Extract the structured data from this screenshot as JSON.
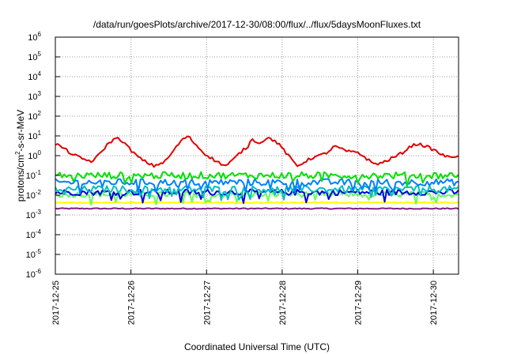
{
  "chart_data": {
    "type": "line",
    "title": "/data/run/goesPlots/archive/2017-12-30/08:00/flux/../flux/5daysMoonFluxes.txt",
    "xlabel": "Coordinated Universal Time (UTC)",
    "ylabel": "protons/cm²-s-sr-MeV",
    "ylabel_parts": [
      "protons/cm",
      "2",
      "-s-sr-MeV"
    ],
    "y_scale": "log",
    "ylim_exp": [
      -6,
      6
    ],
    "y_tick_exponents": [
      "-6",
      "-5",
      "-4",
      "-3",
      "-2",
      "-1",
      "0",
      "1",
      "2",
      "3",
      "4",
      "5",
      "6"
    ],
    "x_start": "2017-12-25",
    "x_end": "2017-12-30 08:00",
    "x_ticks": [
      "2017-12-25",
      "2017-12-26",
      "2017-12-27",
      "2017-12-28",
      "2017-12-29",
      "2017-12-30"
    ],
    "grid": true,
    "series": [
      {
        "color": "#e00000",
        "approx": "oscillates ~0.3–10, peaks near Dec 25.8, 26.8, 27.7, 28.9, 29.8",
        "anchors": [
          [
            0.0,
            4
          ],
          [
            0.1,
            2.5
          ],
          [
            0.22,
            1.2
          ],
          [
            0.35,
            0.7
          ],
          [
            0.5,
            0.5
          ],
          [
            0.6,
            1.5
          ],
          [
            0.7,
            4
          ],
          [
            0.8,
            8
          ],
          [
            0.88,
            6
          ],
          [
            0.95,
            3
          ],
          [
            1.05,
            1.2
          ],
          [
            1.15,
            0.6
          ],
          [
            1.3,
            0.3
          ],
          [
            1.45,
            0.5
          ],
          [
            1.55,
            1.5
          ],
          [
            1.65,
            5
          ],
          [
            1.75,
            10
          ],
          [
            1.85,
            4
          ],
          [
            1.95,
            1.5
          ],
          [
            2.1,
            0.6
          ],
          [
            2.25,
            0.3
          ],
          [
            2.35,
            0.6
          ],
          [
            2.45,
            1.5
          ],
          [
            2.55,
            3
          ],
          [
            2.62,
            10
          ],
          [
            2.65,
            4
          ],
          [
            2.72,
            5
          ],
          [
            2.8,
            8
          ],
          [
            2.9,
            6
          ],
          [
            3.0,
            2.5
          ],
          [
            3.1,
            0.8
          ],
          [
            3.2,
            0.3
          ],
          [
            3.3,
            0.5
          ],
          [
            3.4,
            0.8
          ],
          [
            3.5,
            1.0
          ],
          [
            3.6,
            1.5
          ],
          [
            3.7,
            3
          ],
          [
            3.8,
            2
          ],
          [
            3.9,
            1.5
          ],
          [
            4.0,
            1.5
          ],
          [
            4.1,
            0.8
          ],
          [
            4.2,
            0.4
          ],
          [
            4.3,
            0.4
          ],
          [
            4.4,
            0.6
          ],
          [
            4.5,
            0.9
          ],
          [
            4.6,
            1.5
          ],
          [
            4.7,
            3
          ],
          [
            4.8,
            4
          ],
          [
            4.9,
            3
          ],
          [
            5.0,
            2
          ],
          [
            5.1,
            1.2
          ],
          [
            5.2,
            0.8
          ],
          [
            5.3,
            1.0
          ]
        ]
      },
      {
        "color": "#00e000",
        "approx": "~0.05–0.2",
        "base": 0.1,
        "noise": 0.35
      },
      {
        "color": "#0080ff",
        "approx": "~0.03–0.08",
        "base": 0.045,
        "noise": 0.35
      },
      {
        "color": "#00c0c0",
        "approx": "~0.01–0.03",
        "base": 0.02,
        "noise": 0.35
      },
      {
        "color": "#0000e0",
        "approx": "~0.01–0.02",
        "base": 0.014,
        "noise": 0.3
      },
      {
        "color": "#60ff60",
        "approx": "~0.008–0.02",
        "base": 0.011,
        "noise": 0.3
      },
      {
        "color": "#ffff00",
        "approx": "~0.004",
        "base": 0.0042,
        "noise": 0.05
      },
      {
        "color": "#802080",
        "approx": "~0.002",
        "base": 0.0021,
        "noise": 0.05
      }
    ]
  }
}
